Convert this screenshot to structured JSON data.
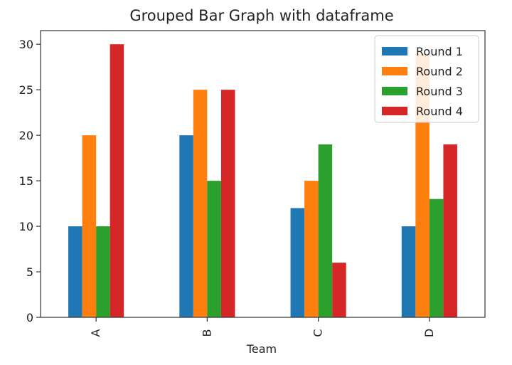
{
  "chart_data": {
    "type": "bar",
    "title": "Grouped Bar Graph with dataframe",
    "xlabel": "Team",
    "ylabel": "",
    "categories": [
      "A",
      "B",
      "C",
      "D"
    ],
    "series": [
      {
        "name": "Round 1",
        "values": [
          10,
          20,
          12,
          10
        ],
        "color": "#1f77b4"
      },
      {
        "name": "Round 2",
        "values": [
          20,
          25,
          15,
          29
        ],
        "color": "#ff7f0e"
      },
      {
        "name": "Round 3",
        "values": [
          10,
          15,
          19,
          13
        ],
        "color": "#2ca02c"
      },
      {
        "name": "Round 4",
        "values": [
          30,
          25,
          6,
          19
        ],
        "color": "#d62728"
      }
    ],
    "ylim": [
      0,
      31.5
    ],
    "yticks": [
      0,
      5,
      10,
      15,
      20,
      25,
      30
    ],
    "grid": false,
    "legend_position": "top-right"
  }
}
